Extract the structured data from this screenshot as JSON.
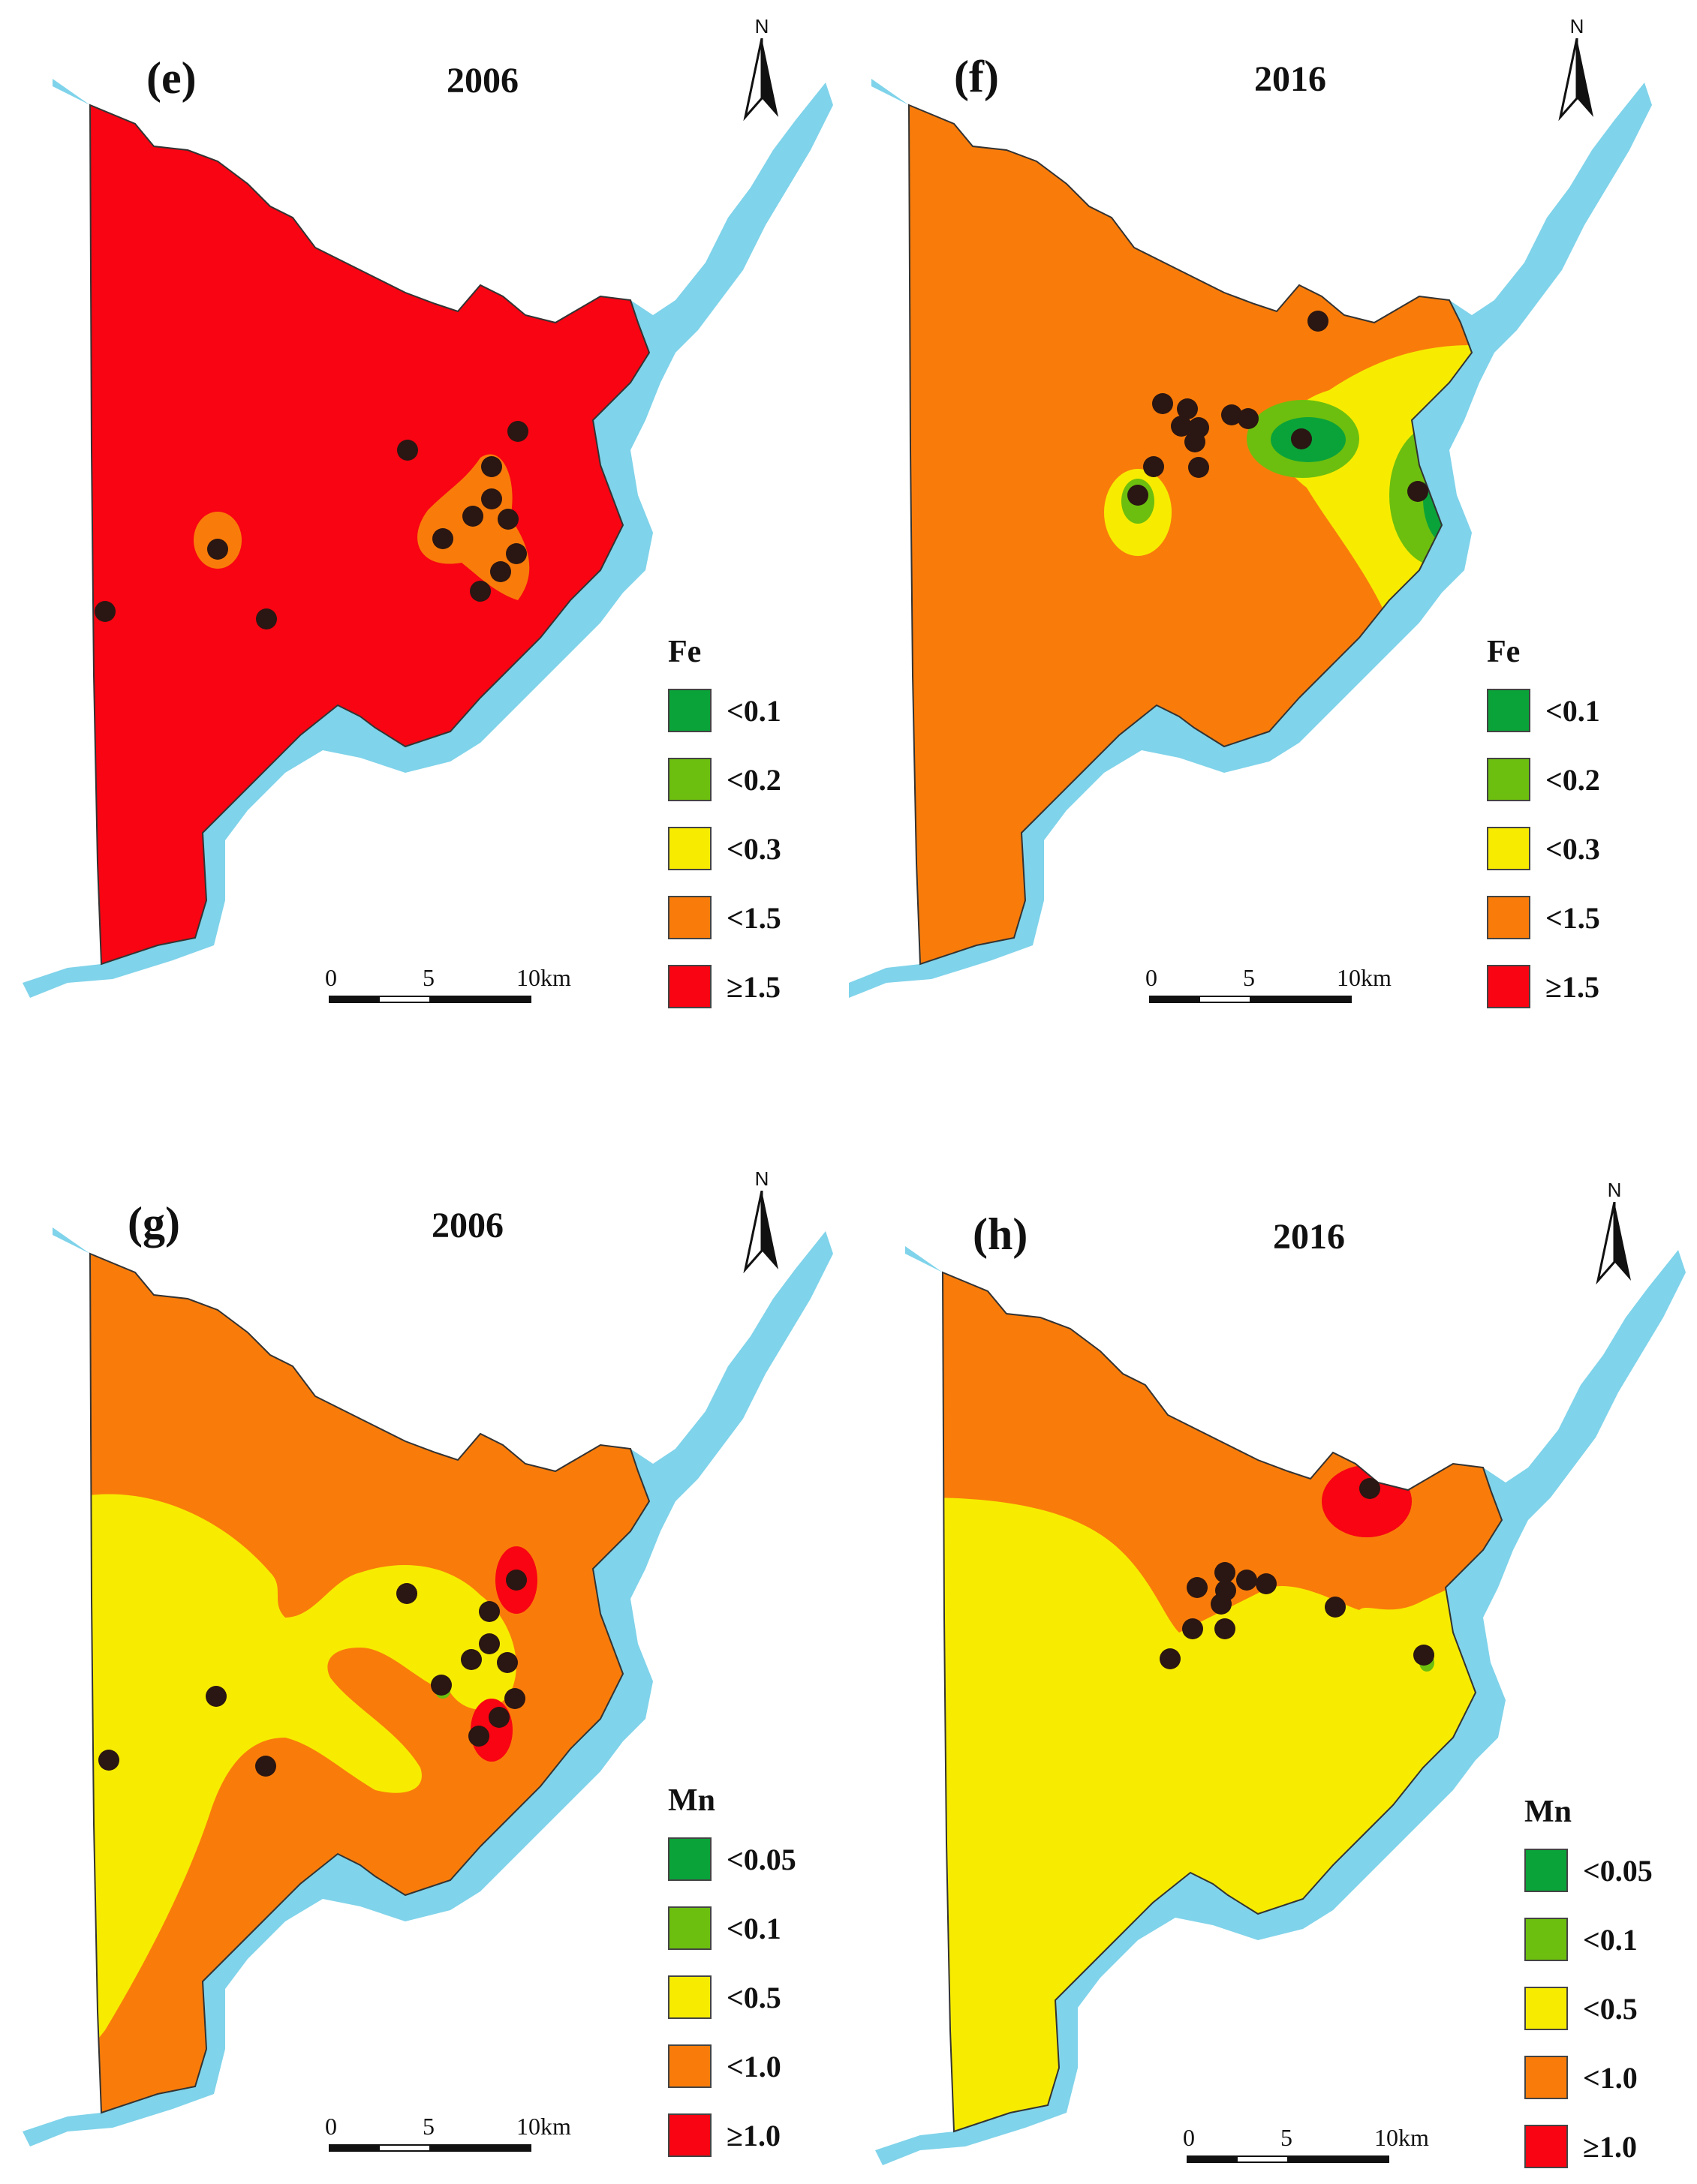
{
  "colors": {
    "c1": "#0aa33a",
    "c2": "#6cbf0e",
    "c3": "#f7ec00",
    "c4": "#f97c0a",
    "c5": "#f80412",
    "river": "#7fd3ea",
    "point": "#2a1612"
  },
  "panels": [
    {
      "label": "(e)",
      "year": "2006",
      "legend": {
        "title": "Fe",
        "items": [
          "<0.1",
          "<0.2",
          "<0.3",
          "<1.5",
          "≥1.5"
        ]
      },
      "scale": {
        "ticks": [
          "0",
          "5",
          "10km"
        ]
      },
      "north": "N",
      "base_class": 5
    },
    {
      "label": "(f)",
      "year": "2016",
      "legend": {
        "title": "Fe",
        "items": [
          "<0.1",
          "<0.2",
          "<0.3",
          "<1.5",
          "≥1.5"
        ]
      },
      "scale": {
        "ticks": [
          "0",
          "5",
          "10km"
        ]
      },
      "north": "N",
      "base_class": 4
    },
    {
      "label": "(g)",
      "year": "2006",
      "legend": {
        "title": "Mn",
        "items": [
          "<0.05",
          "<0.1",
          "<0.5",
          "<1.0",
          "≥1.0"
        ]
      },
      "scale": {
        "ticks": [
          "0",
          "5",
          "10km"
        ]
      },
      "north": "N",
      "base_class": 4
    },
    {
      "label": "(h)",
      "year": "2016",
      "legend": {
        "title": "Mn",
        "items": [
          "<0.05",
          "<0.1",
          "<0.5",
          "<1.0",
          "≥1.0"
        ]
      },
      "scale": {
        "ticks": [
          "0",
          "5",
          "10km"
        ]
      },
      "north": "N",
      "base_class": 3
    }
  ]
}
